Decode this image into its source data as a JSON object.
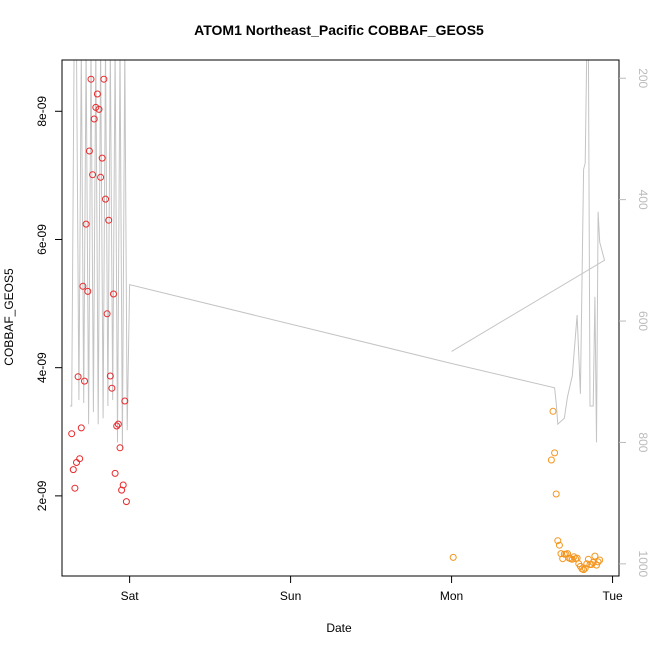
{
  "chart_data": {
    "type": "scatter",
    "title": "ATOM1 Northeast_Pacific COBBAF_GEOS5",
    "xlabel": "Date",
    "ylabel": "COBBAF_GEOS5",
    "x_ticks": [
      {
        "label": "Sat",
        "x": 1.0
      },
      {
        "label": "Sun",
        "x": 2.0
      },
      {
        "label": "Mon",
        "x": 3.0
      },
      {
        "label": "Tue",
        "x": 4.0
      }
    ],
    "xlim": [
      0.58,
      4.04
    ],
    "ylim": [
      7.5e-10,
      8.8e-09
    ],
    "y_ticks": [
      {
        "label": "2e-09",
        "value": 2e-09
      },
      {
        "label": "4e-09",
        "value": 4e-09
      },
      {
        "label": "6e-09",
        "value": 6e-09
      },
      {
        "label": "8e-09",
        "value": 8e-09
      }
    ],
    "y2lim": [
      1020,
      170
    ],
    "y2_ticks": [
      {
        "label": "200",
        "value": 200
      },
      {
        "label": "400",
        "value": 400
      },
      {
        "label": "600",
        "value": 600
      },
      {
        "label": "800",
        "value": 800
      },
      {
        "label": "1000",
        "value": 1000
      }
    ],
    "grid": false,
    "legend": "none",
    "series": [
      {
        "color": "#e8292b",
        "marker": "open-circle",
        "points": [
          [
            0.64,
            2.97e-09
          ],
          [
            0.65,
            2.41e-09
          ],
          [
            0.66,
            2.12e-09
          ],
          [
            0.67,
            2.52e-09
          ],
          [
            0.68,
            3.86e-09
          ],
          [
            0.69,
            2.58e-09
          ],
          [
            0.7,
            3.06e-09
          ],
          [
            0.71,
            5.27e-09
          ],
          [
            0.72,
            3.79e-09
          ],
          [
            0.73,
            6.24e-09
          ],
          [
            0.74,
            5.19e-09
          ],
          [
            0.75,
            7.38e-09
          ],
          [
            0.76,
            8.5e-09
          ],
          [
            0.77,
            7.01e-09
          ],
          [
            0.78,
            7.88e-09
          ],
          [
            0.79,
            8.06e-09
          ],
          [
            0.8,
            8.27e-09
          ],
          [
            0.81,
            8.03e-09
          ],
          [
            0.82,
            6.97e-09
          ],
          [
            0.83,
            7.27e-09
          ],
          [
            0.84,
            8.5e-09
          ],
          [
            0.85,
            6.63e-09
          ],
          [
            0.86,
            4.84e-09
          ],
          [
            0.87,
            6.3e-09
          ],
          [
            0.88,
            3.87e-09
          ],
          [
            0.89,
            3.68e-09
          ],
          [
            0.9,
            5.15e-09
          ],
          [
            0.91,
            2.35e-09
          ],
          [
            0.92,
            3.09e-09
          ],
          [
            0.93,
            3.12e-09
          ],
          [
            0.94,
            2.75e-09
          ],
          [
            0.95,
            2.09e-09
          ],
          [
            0.96,
            2.17e-09
          ],
          [
            0.97,
            3.48e-09
          ],
          [
            0.98,
            1.91e-09
          ]
        ]
      },
      {
        "color": "#f4951d",
        "marker": "open-circle",
        "points": [
          [
            3.01,
            1.04e-09
          ],
          [
            3.62,
            2.56e-09
          ],
          [
            3.63,
            3.32e-09
          ],
          [
            3.64,
            2.67e-09
          ],
          [
            3.65,
            2.03e-09
          ],
          [
            3.66,
            1.3e-09
          ],
          [
            3.67,
            1.23e-09
          ],
          [
            3.68,
            1.1e-09
          ],
          [
            3.69,
            1.02e-09
          ],
          [
            3.7,
            1.09e-09
          ],
          [
            3.71,
            1.09e-09
          ],
          [
            3.72,
            1.1e-09
          ],
          [
            3.73,
            1.03e-09
          ],
          [
            3.74,
            1.02e-09
          ],
          [
            3.75,
            1.01e-09
          ],
          [
            3.76,
            1.05e-09
          ],
          [
            3.77,
            1.02e-09
          ],
          [
            3.78,
            1.03e-09
          ],
          [
            3.79,
            9.4e-10
          ],
          [
            3.8,
            9e-10
          ],
          [
            3.81,
            8.6e-10
          ],
          [
            3.82,
            8.5e-10
          ],
          [
            3.83,
            8.7e-10
          ],
          [
            3.84,
            9.4e-10
          ],
          [
            3.85,
            1.01e-09
          ],
          [
            3.86,
            9.3e-10
          ],
          [
            3.87,
            9.3e-10
          ],
          [
            3.88,
            9.6e-10
          ],
          [
            3.89,
            1.06e-09
          ],
          [
            3.9,
            9.2e-10
          ],
          [
            3.91,
            9.7e-10
          ],
          [
            3.92,
            1e-09
          ]
        ]
      }
    ],
    "secondary_line": {
      "color": "#c4c4c4",
      "axis": "right",
      "points": [
        [
          0.63,
          740
        ],
        [
          0.64,
          740
        ],
        [
          0.655,
          150
        ],
        [
          0.67,
          150
        ],
        [
          0.685,
          730
        ],
        [
          0.7,
          150
        ],
        [
          0.715,
          735
        ],
        [
          0.73,
          150
        ],
        [
          0.745,
          770
        ],
        [
          0.76,
          150
        ],
        [
          0.775,
          750
        ],
        [
          0.79,
          150
        ],
        [
          0.805,
          770
        ],
        [
          0.82,
          150
        ],
        [
          0.835,
          760
        ],
        [
          0.85,
          150
        ],
        [
          0.865,
          740
        ],
        [
          0.88,
          150
        ],
        [
          0.895,
          730
        ],
        [
          0.91,
          150
        ],
        [
          0.925,
          800
        ],
        [
          0.94,
          150
        ],
        [
          0.955,
          810
        ],
        [
          0.97,
          150
        ],
        [
          0.985,
          780
        ],
        [
          1.0,
          540
        ],
        [
          3.0,
          670
        ],
        [
          3.64,
          710
        ],
        [
          3.65,
          735
        ],
        [
          3.66,
          770
        ],
        [
          3.7,
          760
        ],
        [
          3.72,
          725
        ],
        [
          3.75,
          690
        ],
        [
          3.78,
          590
        ],
        [
          3.8,
          720
        ],
        [
          3.82,
          350
        ],
        [
          3.83,
          340
        ],
        [
          3.84,
          150
        ],
        [
          3.85,
          150
        ],
        [
          3.86,
          740
        ],
        [
          3.88,
          740
        ],
        [
          3.89,
          560
        ],
        [
          3.9,
          800
        ],
        [
          3.91,
          420
        ],
        [
          3.92,
          470
        ],
        [
          3.95,
          500
        ],
        [
          3.0,
          650
        ]
      ]
    }
  }
}
